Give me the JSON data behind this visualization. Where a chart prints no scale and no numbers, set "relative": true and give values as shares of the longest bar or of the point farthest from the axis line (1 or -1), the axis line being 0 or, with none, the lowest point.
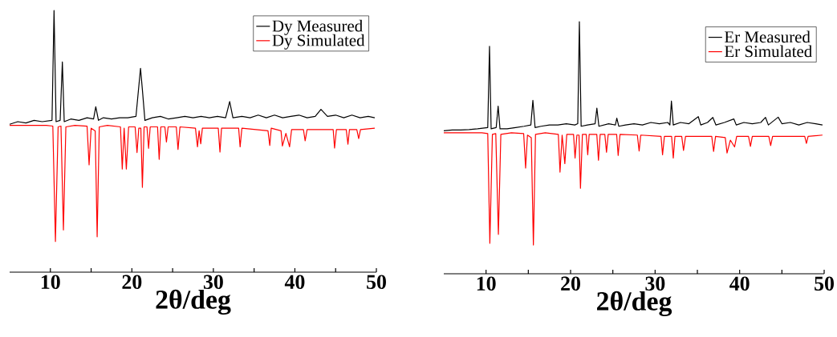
{
  "chart_data": [
    {
      "type": "line",
      "relative": true,
      "xlabel": "2θ/deg",
      "xlim": [
        5,
        50
      ],
      "xticks": [
        10,
        {
          "value": 15,
          "label": null
        },
        20,
        {
          "value": 25,
          "label": null
        },
        30,
        {
          "value": 35,
          "label": null
        },
        40,
        {
          "value": 45,
          "label": null
        },
        50
      ],
      "legend": "top right",
      "series": [
        {
          "name": "Dy Measured",
          "color": "#000000",
          "x": [
            5,
            6,
            7,
            8,
            9,
            10.2,
            10.45,
            10.7,
            11.2,
            11.47,
            11.7,
            12.5,
            13.5,
            14.5,
            15.3,
            15.57,
            15.9,
            16.5,
            17.5,
            18.5,
            19.5,
            20.5,
            21.06,
            21.3,
            21.6,
            22.5,
            23.5,
            24.5,
            25.5,
            26.5,
            27.5,
            28.5,
            29.5,
            30.5,
            31.5,
            32.0,
            32.4,
            33.5,
            34.5,
            35.5,
            36.5,
            37.5,
            38.5,
            39.5,
            40.5,
            41.5,
            42.5,
            43.2,
            44,
            45,
            46,
            47,
            48,
            49,
            49.8
          ],
          "values": [
            0.565,
            0.575,
            0.57,
            0.58,
            0.575,
            0.58,
            1.0,
            0.575,
            0.58,
            0.803,
            0.575,
            0.585,
            0.58,
            0.59,
            0.585,
            0.632,
            0.58,
            0.59,
            0.585,
            0.59,
            0.59,
            0.595,
            0.779,
            0.693,
            0.58,
            0.59,
            0.595,
            0.585,
            0.59,
            0.595,
            0.59,
            0.595,
            0.59,
            0.595,
            0.59,
            0.652,
            0.59,
            0.595,
            0.59,
            0.6,
            0.59,
            0.6,
            0.59,
            0.595,
            0.6,
            0.59,
            0.595,
            0.622,
            0.595,
            0.6,
            0.59,
            0.6,
            0.59,
            0.595,
            0.59
          ]
        },
        {
          "name": "Dy Simulated",
          "color": "#ff0000",
          "x": [
            5,
            9.5,
            10.3,
            10.62,
            10.95,
            11.3,
            11.6,
            11.9,
            13,
            14.5,
            14.75,
            15.0,
            15.5,
            15.74,
            16.0,
            17,
            18.6,
            18.82,
            19.05,
            19.32,
            19.6,
            20.4,
            20.63,
            20.85,
            21.1,
            21.29,
            21.5,
            21.85,
            22.05,
            22.25,
            23.15,
            23.35,
            23.55,
            24.05,
            24.24,
            24.45,
            25.45,
            25.66,
            25.9,
            27.8,
            28.05,
            28.25,
            28.45,
            28.65,
            30.6,
            30.81,
            31.0,
            33.1,
            33.28,
            33.5,
            36.7,
            36.92,
            37.1,
            38.3,
            38.47,
            38.9,
            39.35,
            39.6,
            41.05,
            41.26,
            41.5,
            44.7,
            44.87,
            45.1,
            46.3,
            46.51,
            46.7,
            47.6,
            47.83,
            48.05,
            49.8
          ],
          "values": [
            0.561,
            0.561,
            0.558,
            0.117,
            0.555,
            0.558,
            0.161,
            0.555,
            0.561,
            0.558,
            0.41,
            0.55,
            0.54,
            0.135,
            0.555,
            0.561,
            0.555,
            0.394,
            0.55,
            0.394,
            0.555,
            0.555,
            0.457,
            0.55,
            0.55,
            0.324,
            0.555,
            0.555,
            0.473,
            0.555,
            0.555,
            0.431,
            0.555,
            0.555,
            0.497,
            0.555,
            0.555,
            0.469,
            0.555,
            0.55,
            0.479,
            0.54,
            0.49,
            0.55,
            0.55,
            0.459,
            0.55,
            0.55,
            0.479,
            0.55,
            0.54,
            0.484,
            0.55,
            0.54,
            0.482,
            0.53,
            0.479,
            0.545,
            0.545,
            0.502,
            0.545,
            0.545,
            0.474,
            0.545,
            0.545,
            0.489,
            0.545,
            0.545,
            0.51,
            0.545,
            0.55
          ]
        }
      ]
    },
    {
      "type": "line",
      "relative": true,
      "xlabel": "2θ/deg",
      "xlim": [
        5,
        50
      ],
      "xticks": [
        10,
        {
          "value": 15,
          "label": null
        },
        20,
        {
          "value": 25,
          "label": null
        },
        30,
        {
          "value": 35,
          "label": null
        },
        40,
        {
          "value": 45,
          "label": null
        },
        50
      ],
      "legend": "top right",
      "series": [
        {
          "name": "Er Measured",
          "color": "#000000",
          "x": [
            5,
            6,
            7,
            8,
            9,
            10.2,
            10.41,
            10.6,
            11.2,
            11.43,
            11.65,
            12.5,
            13.5,
            14.5,
            15.3,
            15.54,
            15.8,
            16.5,
            17.5,
            18.5,
            19.5,
            20.5,
            20.85,
            21.04,
            21.25,
            22,
            22.9,
            23.11,
            23.35,
            24.5,
            25.3,
            25.47,
            25.7,
            26.5,
            27.5,
            28.5,
            29.5,
            30.5,
            31.5,
            31.75,
            31.93,
            32.15,
            33,
            34,
            35.11,
            35.4,
            36.2,
            36.83,
            37.2,
            38.2,
            39.31,
            39.6,
            40.5,
            41.5,
            42.5,
            43.06,
            43.4,
            44.56,
            45,
            46,
            47,
            48,
            49,
            49.8
          ],
          "values": [
            0.567,
            0.57,
            0.57,
            0.572,
            0.575,
            0.58,
            0.902,
            0.575,
            0.58,
            0.665,
            0.575,
            0.575,
            0.58,
            0.585,
            0.59,
            0.688,
            0.58,
            0.585,
            0.59,
            0.59,
            0.595,
            0.59,
            0.595,
            1.0,
            0.585,
            0.59,
            0.595,
            0.657,
            0.585,
            0.595,
            0.59,
            0.617,
            0.585,
            0.59,
            0.595,
            0.59,
            0.6,
            0.595,
            0.6,
            0.59,
            0.685,
            0.59,
            0.6,
            0.595,
            0.623,
            0.59,
            0.6,
            0.62,
            0.59,
            0.6,
            0.614,
            0.59,
            0.6,
            0.595,
            0.6,
            0.62,
            0.59,
            0.621,
            0.595,
            0.6,
            0.59,
            0.6,
            0.595,
            0.59
          ]
        },
        {
          "name": "Er Simulated",
          "color": "#ff0000",
          "x": [
            5,
            9.5,
            10.2,
            10.45,
            10.75,
            11.15,
            11.46,
            11.75,
            13,
            14.45,
            14.68,
            14.9,
            15.35,
            15.6,
            15.85,
            17,
            18.55,
            18.75,
            19.0,
            19.32,
            19.55,
            20.35,
            20.53,
            20.75,
            21.0,
            21.17,
            21.4,
            21.85,
            22.03,
            22.2,
            23.1,
            23.3,
            23.5,
            24.05,
            24.25,
            24.45,
            25.45,
            25.63,
            25.85,
            27.9,
            28.11,
            28.3,
            30.7,
            30.88,
            31.1,
            31.95,
            32.15,
            32.35,
            33.15,
            33.36,
            33.6,
            36.7,
            36.92,
            37.15,
            38.3,
            38.51,
            38.9,
            39.4,
            39.65,
            41.05,
            41.28,
            41.5,
            43.45,
            43.67,
            43.9,
            47.7,
            47.9,
            48.1,
            49.8
          ],
          "values": [
            0.559,
            0.559,
            0.556,
            0.121,
            0.553,
            0.556,
            0.156,
            0.553,
            0.559,
            0.556,
            0.419,
            0.55,
            0.54,
            0.114,
            0.553,
            0.559,
            0.553,
            0.403,
            0.55,
            0.437,
            0.553,
            0.553,
            0.459,
            0.55,
            0.55,
            0.339,
            0.553,
            0.553,
            0.472,
            0.553,
            0.553,
            0.45,
            0.553,
            0.553,
            0.482,
            0.553,
            0.553,
            0.469,
            0.553,
            0.55,
            0.487,
            0.55,
            0.545,
            0.472,
            0.545,
            0.545,
            0.459,
            0.545,
            0.545,
            0.489,
            0.545,
            0.545,
            0.485,
            0.545,
            0.54,
            0.479,
            0.53,
            0.503,
            0.545,
            0.545,
            0.505,
            0.545,
            0.545,
            0.508,
            0.545,
            0.545,
            0.517,
            0.545,
            0.55
          ]
        }
      ]
    }
  ]
}
